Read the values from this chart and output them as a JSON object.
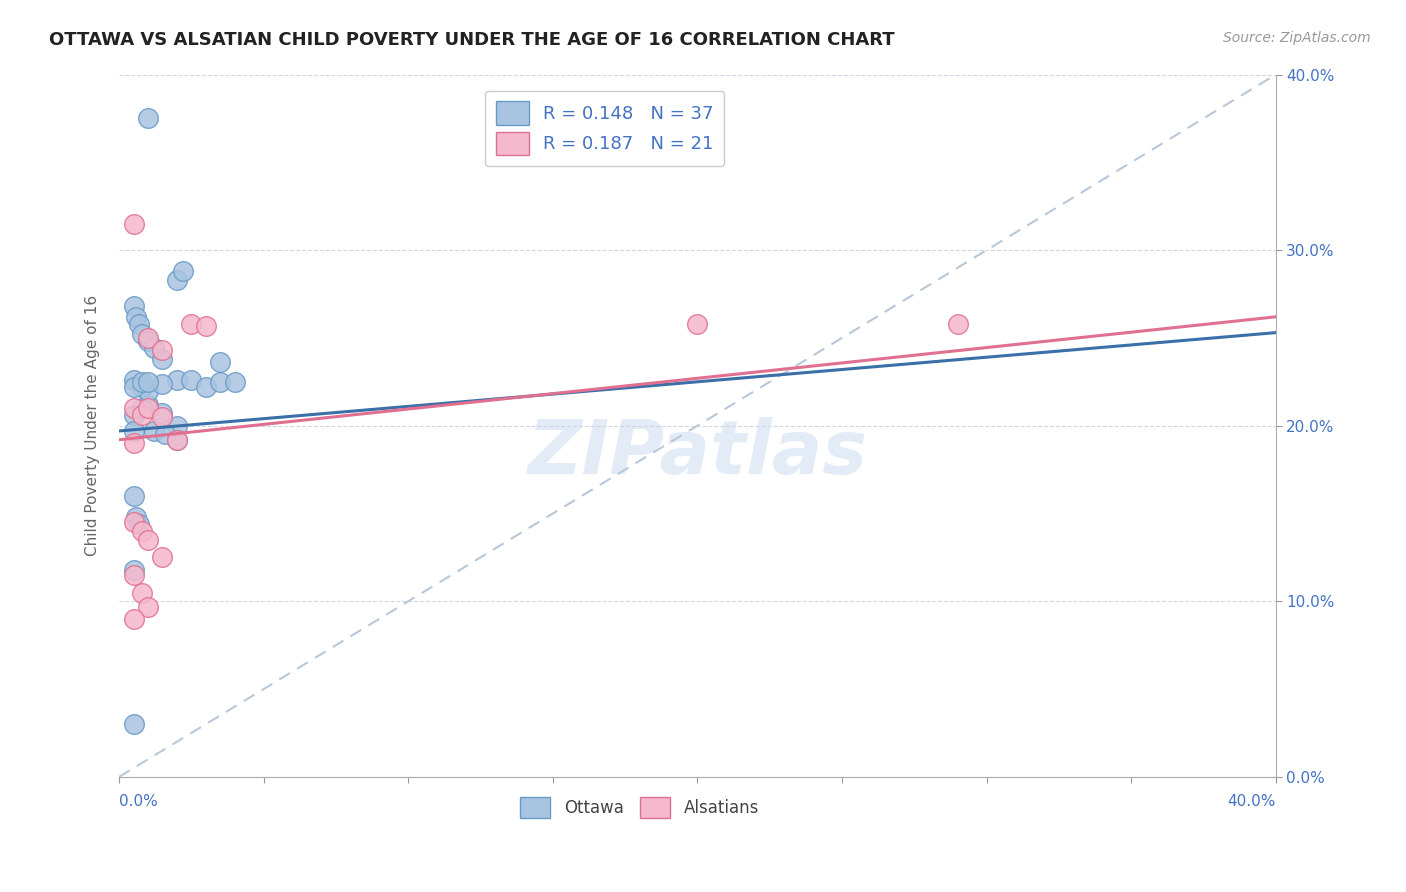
{
  "title": "OTTAWA VS ALSATIAN CHILD POVERTY UNDER THE AGE OF 16 CORRELATION CHART",
  "source": "Source: ZipAtlas.com",
  "ylabel": "Child Poverty Under the Age of 16",
  "xlim": [
    0.0,
    0.4
  ],
  "ylim": [
    0.0,
    0.4
  ],
  "xticks": [
    0.0,
    0.05,
    0.1,
    0.15,
    0.2,
    0.25,
    0.3,
    0.35,
    0.4
  ],
  "yticks": [
    0.0,
    0.1,
    0.2,
    0.3,
    0.4
  ],
  "right_ytick_labels": [
    "0.0%",
    "10.0%",
    "20.0%",
    "30.0%",
    "40.0%"
  ],
  "bottom_xtick_labels_ends": [
    "0.0%",
    "40.0%"
  ],
  "ottawa_color": "#a8c4e0",
  "alsatian_color": "#f5b8cc",
  "ottawa_edge_color": "#6a9ac8",
  "alsatian_edge_color": "#e07090",
  "trend_ottawa_color": "#3a6fa8",
  "trend_alsatian_color": "#e07090",
  "trend_dashed_color": "#b8c8d8",
  "legend_text_color": "#4472c4",
  "tick_color": "#4472c4",
  "R_ottawa": 0.148,
  "N_ottawa": 37,
  "R_alsatian": 0.187,
  "N_alsatian": 21,
  "watermark": "ZIPatlas",
  "background_color": "#ffffff",
  "ottawa_trend_x0": 0.0,
  "ottawa_trend_y0": 0.197,
  "ottawa_trend_x1": 0.4,
  "ottawa_trend_y1": 0.253,
  "alsatian_trend_x0": 0.0,
  "alsatian_trend_y0": 0.192,
  "alsatian_trend_x1": 0.4,
  "alsatian_trend_y1": 0.262,
  "ottawa_x": [
    0.01,
    0.02,
    0.022,
    0.005,
    0.006,
    0.007,
    0.008,
    0.01,
    0.012,
    0.015,
    0.005,
    0.008,
    0.01,
    0.015,
    0.02,
    0.025,
    0.03,
    0.035,
    0.005,
    0.008,
    0.01,
    0.015,
    0.02,
    0.005,
    0.008,
    0.01,
    0.035,
    0.04,
    0.005,
    0.012,
    0.016,
    0.02,
    0.005,
    0.006,
    0.007,
    0.005,
    0.005
  ],
  "ottawa_y": [
    0.375,
    0.283,
    0.288,
    0.268,
    0.262,
    0.258,
    0.252,
    0.248,
    0.244,
    0.238,
    0.226,
    0.222,
    0.212,
    0.207,
    0.226,
    0.226,
    0.222,
    0.236,
    0.206,
    0.21,
    0.22,
    0.224,
    0.2,
    0.222,
    0.225,
    0.225,
    0.225,
    0.225,
    0.197,
    0.197,
    0.195,
    0.192,
    0.16,
    0.148,
    0.144,
    0.118,
    0.03
  ],
  "alsatian_x": [
    0.005,
    0.01,
    0.015,
    0.005,
    0.008,
    0.01,
    0.015,
    0.02,
    0.025,
    0.03,
    0.005,
    0.008,
    0.01,
    0.015,
    0.005,
    0.008,
    0.01,
    0.2,
    0.005,
    0.29,
    0.005
  ],
  "alsatian_y": [
    0.315,
    0.25,
    0.243,
    0.21,
    0.206,
    0.21,
    0.205,
    0.192,
    0.258,
    0.257,
    0.145,
    0.14,
    0.135,
    0.125,
    0.115,
    0.105,
    0.097,
    0.258,
    0.09,
    0.258,
    0.19
  ]
}
